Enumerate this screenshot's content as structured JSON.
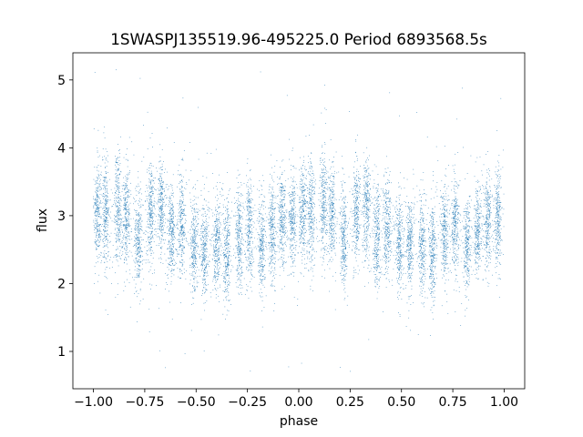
{
  "chart_data": {
    "type": "scatter",
    "title": "1SWASPJ135519.96-495225.0 Period 6893568.5s",
    "xlabel": "phase",
    "ylabel": "flux",
    "xlim": [
      -1.1,
      1.1
    ],
    "ylim": [
      0.45,
      5.4
    ],
    "xticks": [
      -1.0,
      -0.75,
      -0.5,
      -0.25,
      0.0,
      0.25,
      0.5,
      0.75,
      1.0
    ],
    "xtick_labels": [
      "−1.00",
      "−0.75",
      "−0.50",
      "−0.25",
      "0.00",
      "0.25",
      "0.50",
      "0.75",
      "1.00"
    ],
    "yticks": [
      1,
      2,
      3,
      4,
      5
    ],
    "ytick_labels": [
      "1",
      "2",
      "3",
      "4",
      "5"
    ],
    "grid": false,
    "marker_color": "#1f77b4",
    "marker_size_pt": 0.5,
    "phase_range": [
      -1.0,
      1.0
    ],
    "mirrored_about_zero": true,
    "clusters": [
      {
        "phase": -0.98,
        "flux_center": 3.05,
        "flux_spread": 0.35
      },
      {
        "phase": -0.94,
        "flux_center": 3.1,
        "flux_spread": 0.4
      },
      {
        "phase": -0.88,
        "flux_center": 3.15,
        "flux_spread": 0.4
      },
      {
        "phase": -0.84,
        "flux_center": 3.0,
        "flux_spread": 0.35
      },
      {
        "phase": -0.78,
        "flux_center": 2.65,
        "flux_spread": 0.35
      },
      {
        "phase": -0.72,
        "flux_center": 3.05,
        "flux_spread": 0.35
      },
      {
        "phase": -0.67,
        "flux_center": 3.15,
        "flux_spread": 0.35
      },
      {
        "phase": -0.62,
        "flux_center": 2.7,
        "flux_spread": 0.35
      },
      {
        "phase": -0.57,
        "flux_center": 2.85,
        "flux_spread": 0.35
      },
      {
        "phase": -0.51,
        "flux_center": 2.55,
        "flux_spread": 0.35
      },
      {
        "phase": -0.46,
        "flux_center": 2.5,
        "flux_spread": 0.35
      },
      {
        "phase": -0.4,
        "flux_center": 2.55,
        "flux_spread": 0.35
      },
      {
        "phase": -0.35,
        "flux_center": 2.45,
        "flux_spread": 0.35
      },
      {
        "phase": -0.29,
        "flux_center": 2.7,
        "flux_spread": 0.35
      },
      {
        "phase": -0.24,
        "flux_center": 2.85,
        "flux_spread": 0.35
      },
      {
        "phase": -0.18,
        "flux_center": 2.55,
        "flux_spread": 0.35
      },
      {
        "phase": -0.13,
        "flux_center": 2.8,
        "flux_spread": 0.35
      },
      {
        "phase": -0.08,
        "flux_center": 2.95,
        "flux_spread": 0.35
      },
      {
        "phase": -0.03,
        "flux_center": 2.95,
        "flux_spread": 0.35
      }
    ],
    "outlier_flux_range": [
      0.65,
      5.15
    ]
  }
}
